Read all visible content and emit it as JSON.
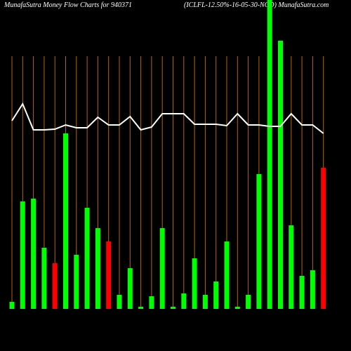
{
  "chart_data": {
    "type": "bar",
    "title": "MunafaSutra  Money Flow  Charts for 940371",
    "subtitle": "(ICLFL-12.50%-16-05-30-NCD) MunafaSutra.com",
    "ylim": [
      0,
      440
    ],
    "series": [
      {
        "name": "Money flow",
        "values": [
          10,
          153,
          157,
          87,
          65,
          250,
          77,
          144,
          115,
          96,
          20,
          58,
          3,
          18,
          115,
          3,
          22,
          72,
          20,
          39,
          96,
          3,
          20,
          192,
          460,
          382,
          119,
          47,
          55,
          201
        ],
        "colors": [
          "#00ff00",
          "#00ff00",
          "#00ff00",
          "#00ff00",
          "#ff0000",
          "#00ff00",
          "#00ff00",
          "#00ff00",
          "#00ff00",
          "#ff0000",
          "#00ff00",
          "#00ff00",
          "#00ff00",
          "#00ff00",
          "#00ff00",
          "#00ff00",
          "#00ff00",
          "#00ff00",
          "#00ff00",
          "#00ff00",
          "#00ff00",
          "#00ff00",
          "#00ff00",
          "#00ff00",
          "#00ff00",
          "#00ff00",
          "#00ff00",
          "#00ff00",
          "#00ff00",
          "#ff0000"
        ]
      },
      {
        "name": "Price",
        "type": "line",
        "color": "#ffffff",
        "values": [
          268,
          292,
          255,
          255,
          256,
          262,
          258,
          258,
          273,
          262,
          262,
          274,
          255,
          259,
          278,
          278,
          278,
          263,
          263,
          263,
          261,
          278,
          262,
          262,
          260,
          260,
          278,
          262,
          262,
          250
        ]
      }
    ]
  }
}
